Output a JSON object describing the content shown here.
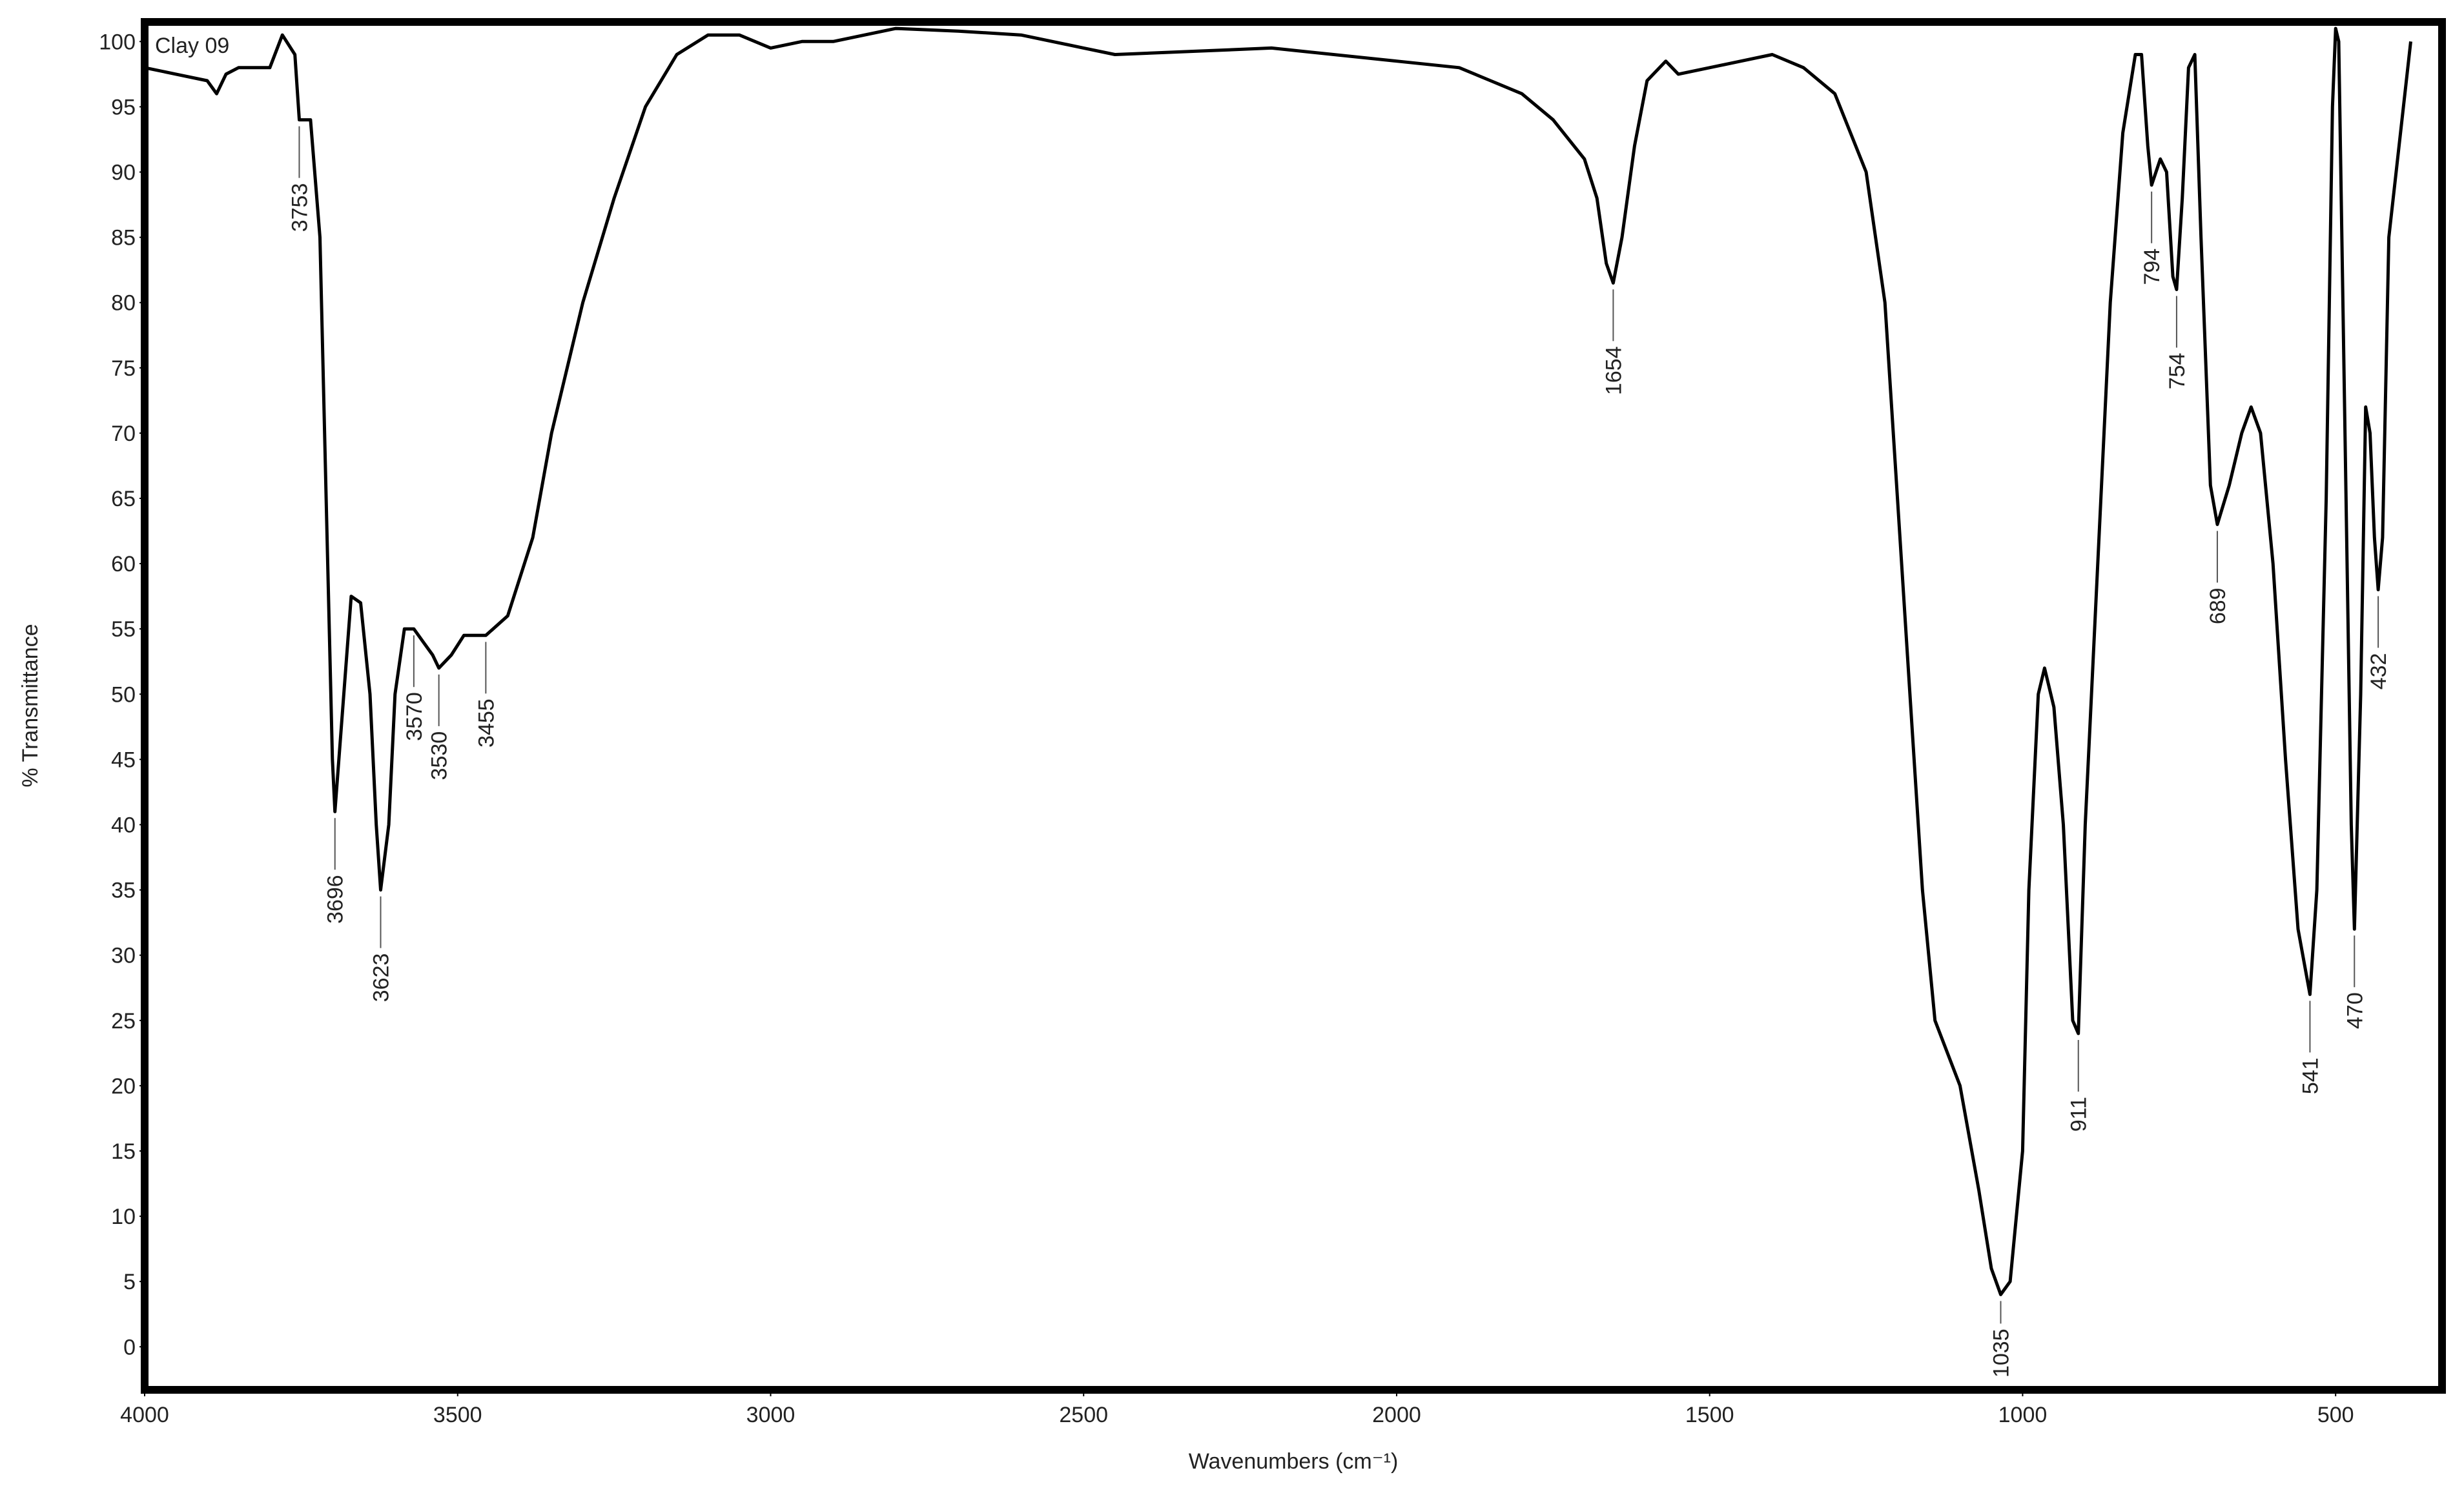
{
  "chart_data": {
    "type": "line",
    "title": "Clay 09",
    "x_label": "Wavenumbers (cm⁻¹)",
    "y_label": "% Transmittance",
    "color": "#000000",
    "xlim": [
      4000,
      330
    ],
    "ylim": [
      -3.3,
      101.5
    ],
    "xticks": [
      4000,
      3500,
      3000,
      2500,
      2000,
      1500,
      1000,
      500
    ],
    "yticks": [
      0,
      5,
      10,
      15,
      20,
      25,
      30,
      35,
      40,
      45,
      50,
      55,
      60,
      65,
      70,
      75,
      80,
      85,
      90,
      95,
      100
    ],
    "x": [
      4000,
      3950,
      3900,
      3885,
      3870,
      3850,
      3800,
      3780,
      3760,
      3753,
      3735,
      3720,
      3710,
      3700,
      3696,
      3685,
      3670,
      3655,
      3640,
      3630,
      3623,
      3610,
      3600,
      3585,
      3570,
      3555,
      3540,
      3530,
      3510,
      3490,
      3455,
      3420,
      3380,
      3350,
      3300,
      3250,
      3200,
      3150,
      3100,
      3050,
      3000,
      2950,
      2900,
      2850,
      2800,
      2700,
      2600,
      2500,
      2450,
      2300,
      2200,
      2000,
      1900,
      1850,
      1800,
      1750,
      1700,
      1680,
      1665,
      1654,
      1640,
      1620,
      1600,
      1570,
      1550,
      1500,
      1450,
      1400,
      1350,
      1300,
      1250,
      1220,
      1200,
      1180,
      1160,
      1140,
      1100,
      1070,
      1050,
      1035,
      1020,
      1000,
      990,
      975,
      965,
      950,
      935,
      920,
      911,
      900,
      880,
      860,
      840,
      820,
      810,
      800,
      794,
      780,
      770,
      760,
      754,
      745,
      735,
      725,
      715,
      700,
      689,
      670,
      650,
      635,
      620,
      600,
      580,
      560,
      541,
      530,
      515,
      505,
      500,
      495,
      485,
      475,
      470,
      460,
      452,
      445,
      438,
      432,
      425,
      415,
      380
    ],
    "values": [
      98,
      97.5,
      97,
      96,
      97.5,
      98,
      98,
      100.5,
      99,
      94,
      94,
      85,
      65,
      45,
      41,
      48,
      57.5,
      57,
      50,
      40,
      35,
      40,
      50,
      55,
      55,
      54,
      53,
      52,
      53,
      54.5,
      54.5,
      56,
      62,
      70,
      80,
      88,
      95,
      99,
      100.5,
      100.5,
      99.5,
      100,
      100,
      100.5,
      101,
      100.8,
      100.5,
      99.5,
      99,
      99.3,
      99.5,
      98.5,
      98,
      97,
      96,
      94,
      91,
      88,
      83,
      81.5,
      85,
      92,
      97,
      98.5,
      97.5,
      98,
      98.5,
      99,
      98,
      96,
      90,
      80,
      65,
      50,
      35,
      25,
      20,
      12,
      6,
      4,
      5,
      15,
      35,
      50,
      52,
      49,
      40,
      25,
      24,
      40,
      60,
      80,
      93,
      99,
      99,
      92,
      89,
      91,
      90,
      82,
      81,
      88,
      98,
      99,
      85,
      66,
      63,
      66,
      70,
      72,
      70,
      60,
      45,
      32,
      27,
      35,
      65,
      95,
      101,
      100,
      70,
      40,
      32,
      50,
      72,
      70,
      62,
      58,
      62,
      85,
      100
    ],
    "peaks": [
      {
        "x": 3753,
        "y": 94
      },
      {
        "x": 3696,
        "y": 41
      },
      {
        "x": 3623,
        "y": 35
      },
      {
        "x": 3570,
        "y": 55
      },
      {
        "x": 3530,
        "y": 52
      },
      {
        "x": 3455,
        "y": 54.5
      },
      {
        "x": 1654,
        "y": 81.5
      },
      {
        "x": 1035,
        "y": 4
      },
      {
        "x": 911,
        "y": 24
      },
      {
        "x": 794,
        "y": 89
      },
      {
        "x": 754,
        "y": 81
      },
      {
        "x": 689,
        "y": 63
      },
      {
        "x": 541,
        "y": 27
      },
      {
        "x": 470,
        "y": 32
      },
      {
        "x": 432,
        "y": 58
      }
    ]
  }
}
